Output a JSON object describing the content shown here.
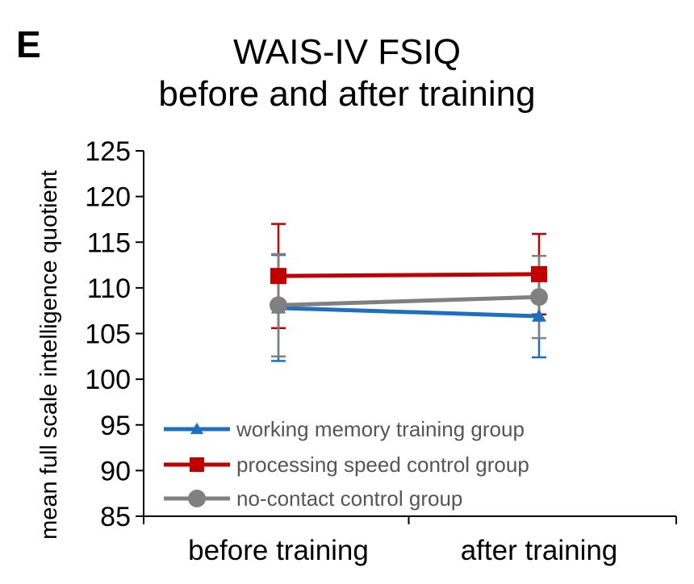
{
  "panel_label": "E",
  "chart_data": {
    "type": "line",
    "title": [
      "WAIS-IV FSIQ",
      "before and after training"
    ],
    "xlabel": "",
    "ylabel": "mean full scale intelligence quotient",
    "categories": [
      "before training",
      "after training"
    ],
    "ylim": [
      85,
      125
    ],
    "yticks": [
      85,
      90,
      95,
      100,
      105,
      110,
      115,
      120,
      125
    ],
    "grid": false,
    "legend_position": "bottom-left",
    "series": [
      {
        "name": "working memory training group",
        "color": "#1f6fc0",
        "marker": "triangle",
        "values": [
          107.8,
          106.9
        ],
        "error": [
          5.8,
          4.5
        ]
      },
      {
        "name": "processing speed control group",
        "color": "#c00000",
        "marker": "square",
        "values": [
          111.3,
          111.5
        ],
        "error": [
          5.7,
          4.4
        ]
      },
      {
        "name": "no-contact control group",
        "color": "#808080",
        "marker": "circle",
        "values": [
          108.1,
          109.0
        ],
        "error": [
          5.6,
          4.5
        ]
      }
    ]
  }
}
